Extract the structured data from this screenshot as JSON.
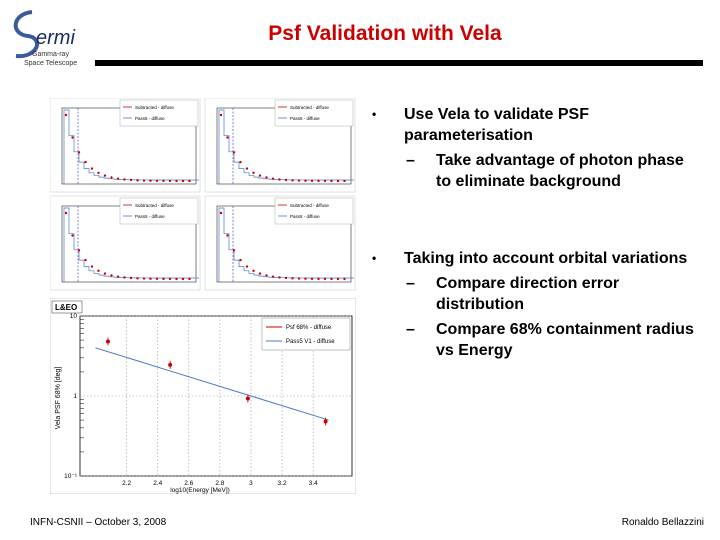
{
  "logo": {
    "name": "ermi",
    "line1": "Gamma-ray",
    "line2": "Space Telescope"
  },
  "title": "Psf Validation with Vela",
  "bullets": [
    {
      "text": "Use Vela to validate PSF parameterisation",
      "sub": [
        "Take advantage of photon phase to eliminate background"
      ]
    },
    {
      "text": "Taking into account orbital variations",
      "sub": [
        "Compare direction error distribution",
        "Compare 68% containment radius vs Energy"
      ]
    }
  ],
  "mini_plots": {
    "legend_a": "Subtracted - diffuse",
    "legend_b": "Pass5 - diffuse"
  },
  "chart_data": {
    "type": "scatter",
    "badge": "L&EO",
    "title": "",
    "xlabel": "log10(Energy [MeV])",
    "ylabel": "Vela PSF 68% [deg]",
    "yscale": "log",
    "xlim": [
      1.9,
      3.65
    ],
    "ylim": [
      0.1,
      10
    ],
    "x_ticks": [
      "2.2",
      "2.4",
      "2.6",
      "2.8",
      "3",
      "3.2",
      "3.4"
    ],
    "y_ticks": [
      "10⁻¹",
      "1",
      "10"
    ],
    "series": [
      {
        "name": "Psf 68% - diffuse",
        "style": "points",
        "color": "#cc0000",
        "x": [
          2.08,
          2.48,
          2.98,
          3.48
        ],
        "y": [
          4.8,
          2.45,
          0.93,
          0.48
        ]
      },
      {
        "name": "Pass5 V1 - diffuse",
        "style": "line",
        "color": "#4a78c8",
        "x": [
          2.0,
          2.5,
          3.0,
          3.5
        ],
        "y": [
          4.0,
          2.0,
          1.0,
          0.5
        ]
      }
    ]
  },
  "footer": {
    "left": "INFN-CSNII – October 3, 2008",
    "right": "Ronaldo Bellazzini"
  },
  "colors": {
    "title": "#cc0000",
    "points": "#cc0000",
    "line": "#4a78c8"
  }
}
